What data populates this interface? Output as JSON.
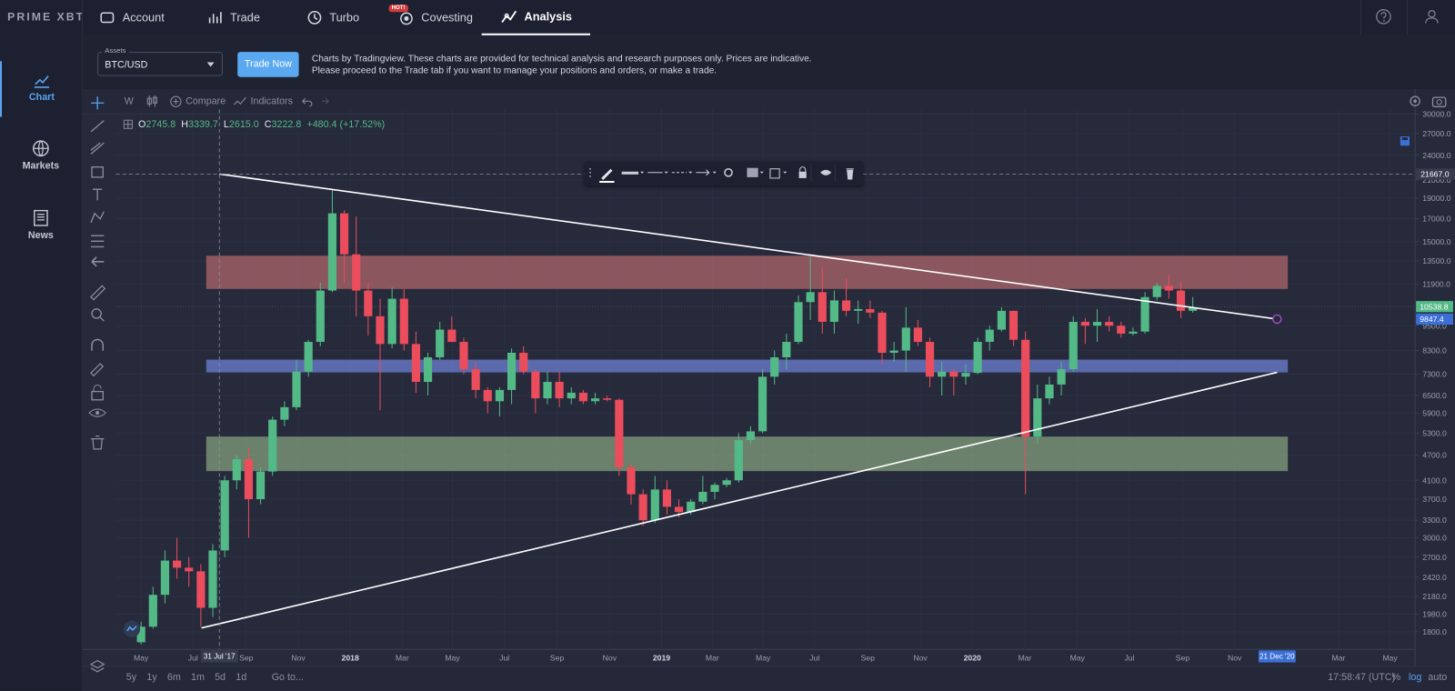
{
  "nav": {
    "logo": "PRIME XBT",
    "items": [
      "Account",
      "Trade",
      "Turbo",
      "Covesting",
      "Analysis"
    ],
    "badge": "HOT!"
  },
  "sidebar": [
    "Chart",
    "Markets",
    "News"
  ],
  "assets": {
    "label": "Assets",
    "selected": "BTC/USD",
    "button": "Trade Now",
    "disclaimer": "Charts by Tradingview. These charts are provided for technical analysis and research purposes only. Prices are indicative. Please proceed to the Trade tab if you want to manage your positions and orders, or make a trade."
  },
  "toolbar": {
    "interval": "W",
    "compare": "Compare",
    "indicators": "Indicators"
  },
  "legend": {
    "items": [
      {
        "key": "O",
        "value": "2745.8"
      },
      {
        "key": "H",
        "value": "3339.7"
      },
      {
        "key": "L",
        "value": "2615.0"
      },
      {
        "key": "C",
        "value": "3222.8"
      }
    ],
    "change": "+480.4 (+17.52%)"
  },
  "footer": {
    "ranges": [
      "5y",
      "1y",
      "6m",
      "1m",
      "5d",
      "1d"
    ],
    "goto": "Go to...",
    "clock": "17:58:47 (UTC)",
    "options": [
      "%",
      "log",
      "auto"
    ]
  },
  "chart_data": {
    "type": "candlestick",
    "log_scale": true,
    "grid": true,
    "up_color": "#53b987",
    "down_color": "#eb4d5c",
    "x": [
      0,
      2,
      4,
      6,
      8,
      10,
      12,
      14,
      16,
      18,
      20,
      22,
      24,
      26,
      28,
      30,
      32,
      34,
      36,
      38,
      40,
      42,
      44,
      46,
      48,
      50,
      52,
      54,
      56,
      58,
      60,
      62,
      64,
      66,
      68,
      70,
      72,
      74,
      76,
      78,
      80,
      82,
      84,
      86,
      88,
      90,
      92,
      94,
      96,
      98,
      100,
      102,
      104,
      106,
      108,
      110,
      112,
      114,
      116,
      118,
      120,
      122,
      124,
      126,
      128,
      130,
      132,
      134,
      136,
      138,
      140,
      142,
      144,
      146,
      148,
      150,
      152,
      154,
      156,
      158,
      160,
      162,
      164,
      166,
      168,
      170,
      172,
      174,
      176
    ],
    "open": [
      1700,
      1850,
      2200,
      2650,
      2550,
      2500,
      2050,
      2800,
      4100,
      4600,
      3700,
      4300,
      5700,
      6100,
      7400,
      8700,
      11500,
      17500,
      14000,
      11500,
      10000,
      8600,
      11000,
      8600,
      7000,
      8000,
      9300,
      8700,
      7500,
      6700,
      6300,
      6700,
      8200,
      7400,
      6400,
      7000,
      6400,
      6600,
      6300,
      6400,
      6350,
      4400,
      3800,
      3300,
      3900,
      3550,
      3450,
      3650,
      3850,
      4000,
      4100,
      5100,
      5350,
      7200,
      8000,
      8700,
      10800,
      11400,
      9700,
      10900,
      10300,
      10400,
      10200,
      8200,
      8300,
      9400,
      8700,
      7200,
      7400,
      7200,
      7350,
      8700,
      9300,
      10300,
      8800,
      5200,
      6400,
      6900,
      7500,
      9700,
      9500,
      9700,
      9500,
      9100,
      9200,
      11100,
      11800,
      11500,
      10300
    ],
    "high": [
      1900,
      2300,
      2800,
      3000,
      2700,
      2600,
      2900,
      4200,
      4700,
      4900,
      4400,
      5800,
      6300,
      7900,
      8800,
      12000,
      20000,
      17800,
      17200,
      12000,
      11000,
      11700,
      11600,
      9200,
      8200,
      9700,
      10000,
      8900,
      7800,
      6800,
      6800,
      8400,
      8500,
      7500,
      7400,
      7400,
      6800,
      6700,
      6600,
      6500,
      6400,
      4500,
      3900,
      4200,
      4100,
      3700,
      3700,
      4200,
      4050,
      4150,
      5300,
      5500,
      7500,
      8300,
      9100,
      11200,
      13800,
      13000,
      11500,
      12300,
      10900,
      10900,
      10300,
      8700,
      10500,
      9800,
      8900,
      7800,
      7500,
      7700,
      8900,
      9500,
      10500,
      10300,
      9200,
      6900,
      7200,
      7800,
      10000,
      9900,
      10400,
      10000,
      9700,
      9400,
      11400,
      12000,
      12500,
      12100,
      11100
    ],
    "low": [
      1680,
      1830,
      2100,
      2400,
      2300,
      1850,
      1950,
      2700,
      3900,
      3000,
      3600,
      4200,
      5500,
      6000,
      7200,
      8500,
      11400,
      12000,
      10000,
      9000,
      6000,
      8400,
      8300,
      6600,
      6500,
      7900,
      8800,
      7300,
      6400,
      5900,
      5800,
      6200,
      7300,
      5900,
      6200,
      6100,
      6200,
      6200,
      6200,
      6300,
      4200,
      3600,
      3200,
      3250,
      3400,
      3350,
      3400,
      3600,
      3700,
      3950,
      4050,
      5000,
      5300,
      6900,
      7500,
      8600,
      9800,
      9100,
      9100,
      10000,
      9600,
      9900,
      7700,
      7800,
      7400,
      8500,
      6800,
      6500,
      6500,
      6900,
      7300,
      8300,
      9200,
      8500,
      3800,
      5000,
      6200,
      6500,
      7400,
      8600,
      8700,
      9200,
      8900,
      9000,
      9100,
      10900,
      11000,
      9900,
      10200
    ],
    "close": [
      1850,
      2200,
      2650,
      2550,
      2500,
      2050,
      2800,
      4100,
      4600,
      3700,
      4300,
      5700,
      6100,
      7400,
      8700,
      11500,
      17500,
      14000,
      11500,
      10000,
      8600,
      11000,
      8600,
      7000,
      8000,
      9300,
      8700,
      7500,
      6700,
      6300,
      6700,
      8200,
      7400,
      6400,
      7000,
      6400,
      6600,
      6300,
      6400,
      6350,
      4400,
      3800,
      3300,
      3900,
      3550,
      3450,
      3650,
      3850,
      4000,
      4100,
      5100,
      5350,
      7200,
      8000,
      8700,
      10800,
      11400,
      9700,
      10900,
      10300,
      10400,
      10200,
      8200,
      8300,
      9400,
      8700,
      7200,
      7400,
      7200,
      7350,
      8700,
      9300,
      10300,
      8800,
      5200,
      6400,
      6900,
      7500,
      9700,
      9500,
      9700,
      9500,
      9100,
      9200,
      11100,
      11800,
      11500,
      10300,
      10500
    ],
    "xlim": [
      -4.2,
      213.2
    ],
    "ylim": [
      1635,
      30770
    ],
    "xticks": [
      {
        "value": 0,
        "label": "May"
      },
      {
        "value": 8.7,
        "label": "Jul"
      },
      {
        "value": 17.6,
        "label": "Sep"
      },
      {
        "value": 26.3,
        "label": "Nov"
      },
      {
        "value": 35,
        "label": "2018"
      },
      {
        "value": 43.7,
        "label": "Mar"
      },
      {
        "value": 52.1,
        "label": "May"
      },
      {
        "value": 60.8,
        "label": "Jul"
      },
      {
        "value": 69.6,
        "label": "Sep"
      },
      {
        "value": 78.4,
        "label": "Nov"
      },
      {
        "value": 87.1,
        "label": "2019"
      },
      {
        "value": 95.6,
        "label": "Mar"
      },
      {
        "value": 104.1,
        "label": "May"
      },
      {
        "value": 112.7,
        "label": "Jul"
      },
      {
        "value": 121.6,
        "label": "Sep"
      },
      {
        "value": 130.4,
        "label": "Nov"
      },
      {
        "value": 139.1,
        "label": "2020"
      },
      {
        "value": 147.9,
        "label": "Mar"
      },
      {
        "value": 156.7,
        "label": "May"
      },
      {
        "value": 165.4,
        "label": "Jul"
      },
      {
        "value": 174.3,
        "label": "Sep"
      },
      {
        "value": 183,
        "label": "Nov"
      },
      {
        "value": 200.4,
        "label": "Mar"
      },
      {
        "value": 209,
        "label": "May"
      }
    ],
    "yticks": [
      {
        "value": 30000,
        "label": "30000.0"
      },
      {
        "value": 27000,
        "label": "27000.0"
      },
      {
        "value": 24000,
        "label": "24000.0"
      },
      {
        "value": 21000,
        "label": "21000.0"
      },
      {
        "value": 19000,
        "label": "19000.0"
      },
      {
        "value": 17000,
        "label": "17000.0"
      },
      {
        "value": 15000,
        "label": "15000.0"
      },
      {
        "value": 13500,
        "label": "13500.0"
      },
      {
        "value": 11900,
        "label": "11900.0"
      },
      {
        "value": 9500,
        "label": "9500.0"
      },
      {
        "value": 8300,
        "label": "8300.0"
      },
      {
        "value": 7300,
        "label": "7300.0"
      },
      {
        "value": 6500,
        "label": "6500.0"
      },
      {
        "value": 5900,
        "label": "5900.0"
      },
      {
        "value": 5300,
        "label": "5300.0"
      },
      {
        "value": 4700,
        "label": "4700.0"
      },
      {
        "value": 4100,
        "label": "4100.0"
      },
      {
        "value": 3700,
        "label": "3700.0"
      },
      {
        "value": 3300,
        "label": "3300.0"
      },
      {
        "value": 3000,
        "label": "3000.0"
      },
      {
        "value": 2700,
        "label": "2700.0"
      },
      {
        "value": 2420,
        "label": "2420.0"
      },
      {
        "value": 2180,
        "label": "2180.0"
      },
      {
        "value": 1980,
        "label": "1980.0"
      },
      {
        "value": 1800,
        "label": "1800.0"
      }
    ],
    "zones": [
      {
        "x": [
          10.9,
          191.9
        ],
        "y": [
          11600,
          13900
        ],
        "color": "rgba(239,130,130,0.5)"
      },
      {
        "x": [
          10.9,
          191.9
        ],
        "y": [
          7370,
          7900
        ],
        "color": "rgba(120,140,235,0.65)"
      },
      {
        "x": [
          10.9,
          191.9
        ],
        "y": [
          4310,
          5200
        ],
        "color": "rgba(175,215,155,0.5)"
      }
    ],
    "trend_lines": [
      {
        "x": [
          13.1,
          190.1
        ],
        "y": [
          21667,
          9847.4
        ],
        "color": "#ffffff"
      },
      {
        "x": [
          10.1,
          190.1
        ],
        "y": [
          1837,
          7370
        ],
        "color": "#ffffff"
      }
    ],
    "crosshair": {
      "x": {
        "value": 13.1,
        "label": "31 Jul '17"
      },
      "y": {
        "value": 21667,
        "label": "21667.0"
      }
    },
    "cursor": {
      "value": 190.1,
      "label": "21 Dec '20"
    },
    "price_labels": [
      {
        "value": 10538.8,
        "label": "10538.8",
        "color": "#53b987"
      },
      {
        "value": 9847.4,
        "label": "9847.4",
        "color": "#3b6fd6"
      }
    ]
  }
}
